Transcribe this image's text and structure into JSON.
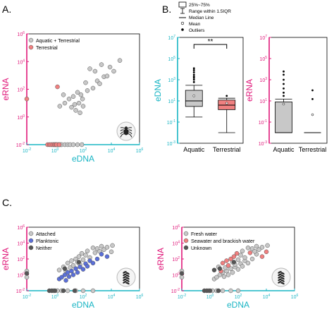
{
  "colors": {
    "erna_axis": "#e0187a",
    "edna_axis": "#19b5c4",
    "gray_point": "#c8c8c8",
    "red_point": "#f08080",
    "blue_point": "#5b6fd8",
    "dark_point": "#555555",
    "box_gray": "#c8c8c8",
    "box_red": "#f08080"
  },
  "panel_labels": {
    "A": "A.",
    "B": "B.",
    "C": "C."
  },
  "box_legend": {
    "items": [
      "25%~75%",
      "Range within 1.5IQR",
      "Median Line",
      "Mean",
      "Outliers"
    ]
  },
  "chart_data": [
    {
      "id": "A",
      "type": "scatter",
      "xlabel": "eDNA",
      "ylabel": "eRNA",
      "xscale": "log",
      "yscale": "log",
      "xlim_exp": [
        -2,
        6
      ],
      "ylim_exp": [
        -2,
        6
      ],
      "tick_labels": [
        "10-2",
        "100",
        "102",
        "104",
        "106"
      ],
      "tick_bases": [
        "10",
        "10",
        "10",
        "10",
        "10"
      ],
      "tick_exps": [
        "-2",
        "0",
        "2",
        "4",
        "6"
      ],
      "legend": {
        "position": "top-left",
        "entries": [
          "Aquatic + Terrestrial",
          "Terrestrial"
        ]
      },
      "icon": "spider-icon",
      "series": [
        {
          "name": "Aquatic + Terrestrial",
          "color_key": "gray_point",
          "points": [
            [
              0.6,
              0.01
            ],
            [
              0.8,
              0.01
            ],
            [
              1.0,
              0.01
            ],
            [
              1.2,
              0.01
            ],
            [
              1.4,
              0.01
            ],
            [
              1.7,
              0.01
            ],
            [
              2.0,
              0.01
            ],
            [
              2.5,
              0.01
            ],
            [
              3,
              0.01
            ],
            [
              5,
              0.01
            ],
            [
              8,
              0.01
            ],
            [
              12,
              0.01
            ],
            [
              20,
              0.01
            ],
            [
              40,
              0.01
            ],
            [
              80,
              0.01
            ],
            [
              2.2,
              6
            ],
            [
              5,
              10
            ],
            [
              4,
              40
            ],
            [
              10,
              20
            ],
            [
              15,
              5
            ],
            [
              20,
              30
            ],
            [
              25,
              8
            ],
            [
              30,
              3
            ],
            [
              40,
              60
            ],
            [
              50,
              10
            ],
            [
              60,
              2
            ],
            [
              70,
              40
            ],
            [
              90,
              20
            ],
            [
              100,
              6
            ],
            [
              150,
              300
            ],
            [
              200,
              80
            ],
            [
              300,
              3000
            ],
            [
              500,
              120
            ],
            [
              700,
              2000
            ],
            [
              1000,
              400
            ],
            [
              1500,
              250
            ],
            [
              2000,
              6000
            ],
            [
              3000,
              800
            ],
            [
              5000,
              900
            ],
            [
              8000,
              4000
            ],
            [
              15000,
              2000
            ],
            [
              40000,
              12000
            ]
          ]
        },
        {
          "name": "Terrestrial",
          "color_key": "red_point",
          "points": [
            [
              0.3,
              0.01
            ],
            [
              0.4,
              0.01
            ],
            [
              0.5,
              0.01
            ],
            [
              0.7,
              0.01
            ],
            [
              0.9,
              0.01
            ],
            [
              1.1,
              0.01
            ],
            [
              1.3,
              0.01
            ],
            [
              2.0,
              0.01
            ],
            [
              1.5,
              150
            ]
          ]
        },
        {
          "name": "",
          "color_key": "red_point",
          "points": [
            [
              0.01,
              20
            ]
          ]
        }
      ]
    },
    {
      "id": "B-eDNA",
      "type": "box",
      "ylabel": "eDNA",
      "yscale": "log",
      "ylim_exp": [
        -3,
        7
      ],
      "tick_labels": [
        "10-3",
        "10-1",
        "101",
        "103",
        "105",
        "107"
      ],
      "tick_bases": [
        "10",
        "10",
        "10",
        "10",
        "10",
        "10"
      ],
      "tick_exps": [
        "-3",
        "-1",
        "1",
        "3",
        "5",
        "7"
      ],
      "categories": [
        "Aquatic",
        "Terrestrial"
      ],
      "significance": "**",
      "boxes": [
        {
          "category": "Aquatic",
          "color_key": "box_gray",
          "whisker_low": 0.3,
          "q1": 3,
          "median": 10,
          "q3": 100,
          "whisker_high": 300,
          "mean": 30,
          "outliers": [
            600,
            1000,
            1500,
            2000,
            3000,
            5000,
            8000,
            12000
          ]
        },
        {
          "category": "Terrestrial",
          "color_key": "box_red",
          "whisker_low": 0.01,
          "q1": 1.5,
          "median": 4,
          "q3": 12,
          "whisker_high": 18,
          "mean": 6,
          "outliers": [
            30
          ]
        }
      ]
    },
    {
      "id": "B-eRNA",
      "type": "box",
      "ylabel": "eRNA",
      "yscale": "log",
      "ylim_exp": [
        -3,
        7
      ],
      "tick_labels": [
        "10-3",
        "10-1",
        "101",
        "103",
        "105",
        "107"
      ],
      "tick_bases": [
        "10",
        "10",
        "10",
        "10",
        "10",
        "10"
      ],
      "tick_exps": [
        "-3",
        "-1",
        "1",
        "3",
        "5",
        "7"
      ],
      "categories": [
        "Aquatic",
        "Terrestrial"
      ],
      "boxes": [
        {
          "category": "Aquatic",
          "color_key": "box_gray",
          "whisker_low": 0.01,
          "q1": 0.01,
          "median": 0.01,
          "q3": 8,
          "whisker_high": 15,
          "mean": 5,
          "outliers": [
            30,
            60,
            150,
            400,
            1000,
            3000,
            6000
          ]
        },
        {
          "category": "Terrestrial",
          "color_key": "box_red",
          "whisker_low": 0.01,
          "q1": 0.01,
          "median": 0.01,
          "q3": 0.01,
          "whisker_high": 0.01,
          "mean": 0.5,
          "outliers": [
            15,
            100
          ]
        }
      ]
    },
    {
      "id": "C-left",
      "type": "scatter",
      "xlabel": "eDNA",
      "ylabel": "eRNA",
      "xscale": "log",
      "yscale": "log",
      "xlim_exp": [
        -2,
        6
      ],
      "ylim_exp": [
        -2,
        6
      ],
      "tick_labels": [
        "10-2",
        "100",
        "102",
        "104",
        "106"
      ],
      "tick_bases": [
        "10",
        "10",
        "10",
        "10",
        "10"
      ],
      "tick_exps": [
        "-2",
        "0",
        "2",
        "4",
        "6"
      ],
      "legend": {
        "position": "top-left",
        "entries": [
          "Attached",
          "Planktonic",
          "Neither"
        ]
      },
      "icon": "plant-icon",
      "series": [
        {
          "name": "Attached",
          "color_key": "gray_point",
          "points": [
            [
              0.01,
              0.5
            ],
            [
              0.01,
              3
            ],
            [
              0.8,
              0.01
            ],
            [
              1.5,
              0.01
            ],
            [
              3,
              0.01
            ],
            [
              8,
              0.01
            ],
            [
              30,
              0.01
            ],
            [
              100,
              0.01
            ],
            [
              500,
              0.01
            ],
            [
              2,
              4
            ],
            [
              4,
              10
            ],
            [
              6,
              3
            ],
            [
              8,
              30
            ],
            [
              12,
              8
            ],
            [
              15,
              60
            ],
            [
              20,
              15
            ],
            [
              30,
              100
            ],
            [
              40,
              40
            ],
            [
              50,
              200
            ],
            [
              60,
              20
            ],
            [
              80,
              500
            ],
            [
              100,
              80
            ],
            [
              150,
              300
            ],
            [
              200,
              1000
            ],
            [
              300,
              150
            ],
            [
              500,
              2500
            ],
            [
              700,
              600
            ],
            [
              1000,
              2000
            ],
            [
              1500,
              900
            ],
            [
              2000,
              4000
            ],
            [
              3000,
              1500
            ],
            [
              5000,
              3000
            ],
            [
              10000,
              800
            ],
            [
              12000,
              5000
            ]
          ]
        },
        {
          "name": "Planktonic",
          "color_key": "blue_point",
          "points": [
            [
              2,
              0.3
            ],
            [
              3,
              0.5
            ],
            [
              5,
              1
            ],
            [
              6,
              0.2
            ],
            [
              8,
              2
            ],
            [
              10,
              0.6
            ],
            [
              15,
              3
            ],
            [
              20,
              1
            ],
            [
              30,
              6
            ],
            [
              40,
              2
            ],
            [
              60,
              10
            ],
            [
              100,
              5
            ],
            [
              150,
              25
            ],
            [
              200,
              12
            ],
            [
              300,
              60
            ],
            [
              500,
              30
            ],
            [
              1000,
              100
            ],
            [
              2000,
              400
            ],
            [
              5000,
              200
            ]
          ]
        },
        {
          "name": "Neither",
          "color_key": "dark_point",
          "points": [
            [
              0.01,
              1.5
            ],
            [
              0.4,
              0.01
            ],
            [
              0.6,
              0.01
            ],
            [
              1,
              0.01
            ],
            [
              4,
              0.01
            ],
            [
              25,
              0.01
            ],
            [
              5,
              6
            ],
            [
              50,
              40
            ]
          ]
        }
      ]
    },
    {
      "id": "C-right",
      "type": "scatter",
      "xlabel": "eDNA",
      "ylabel": "eRNA",
      "xscale": "log",
      "yscale": "log",
      "xlim_exp": [
        -2,
        6
      ],
      "ylim_exp": [
        -2,
        6
      ],
      "tick_labels": [
        "10-2",
        "100",
        "102",
        "104",
        "106"
      ],
      "tick_bases": [
        "10",
        "10",
        "10",
        "10",
        "10"
      ],
      "tick_exps": [
        "-2",
        "0",
        "2",
        "4",
        "6"
      ],
      "legend": {
        "position": "top-left",
        "entries": [
          "Fresh water",
          "Seawater and brackish water",
          "Unknown"
        ]
      },
      "icon": "plant-icon",
      "series": [
        {
          "name": "Fresh water",
          "color_key": "gray_point",
          "points": [
            [
              0.01,
              0.5
            ],
            [
              0.01,
              3
            ],
            [
              0.8,
              0.01
            ],
            [
              1.5,
              0.01
            ],
            [
              3,
              0.01
            ],
            [
              8,
              0.01
            ],
            [
              30,
              0.01
            ],
            [
              100,
              0.01
            ],
            [
              2,
              0.3
            ],
            [
              3,
              0.5
            ],
            [
              5,
              1
            ],
            [
              8,
              2
            ],
            [
              10,
              0.6
            ],
            [
              15,
              3
            ],
            [
              20,
              1
            ],
            [
              30,
              6
            ],
            [
              40,
              2
            ],
            [
              60,
              10
            ],
            [
              100,
              5
            ],
            [
              150,
              25
            ],
            [
              200,
              12
            ],
            [
              300,
              60
            ],
            [
              500,
              30
            ],
            [
              1000,
              100
            ],
            [
              2000,
              400
            ],
            [
              4,
              10
            ],
            [
              12,
              8
            ],
            [
              40,
              40
            ],
            [
              60,
              20
            ],
            [
              100,
              80
            ],
            [
              150,
              300
            ],
            [
              200,
              1000
            ],
            [
              300,
              150
            ],
            [
              500,
              2500
            ],
            [
              1000,
              2000
            ],
            [
              1500,
              900
            ],
            [
              2000,
              4000
            ],
            [
              3000,
              1500
            ],
            [
              5000,
              3000
            ],
            [
              12000,
              5000
            ]
          ]
        },
        {
          "name": "Seawater and brackish water",
          "color_key": "red_point",
          "points": [
            [
              6,
              3
            ],
            [
              8,
              30
            ],
            [
              15,
              60
            ],
            [
              20,
              15
            ],
            [
              30,
              100
            ],
            [
              50,
              200
            ],
            [
              80,
              500
            ],
            [
              700,
              600
            ],
            [
              5000,
              200
            ],
            [
              10000,
              800
            ]
          ]
        },
        {
          "name": "Unknown",
          "color_key": "dark_point",
          "points": [
            [
              0.01,
              1.5
            ],
            [
              0.4,
              0.01
            ],
            [
              0.6,
              0.01
            ],
            [
              1,
              0.01
            ],
            [
              4,
              0.01
            ],
            [
              2,
              4
            ],
            [
              5,
              6
            ],
            [
              50,
              40
            ]
          ]
        }
      ]
    }
  ]
}
